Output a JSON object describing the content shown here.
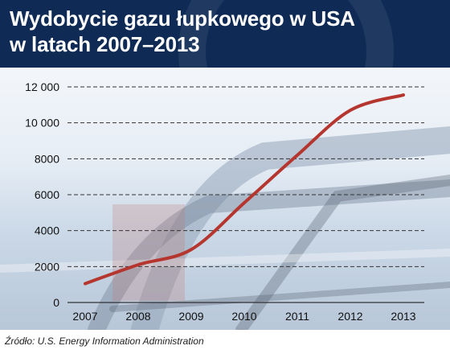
{
  "header": {
    "title_line1": "Wydobycie gazu łupkowego w USA",
    "title_line2": "w latach 2007–2013"
  },
  "source": "Źródło: U.S.  Energy Information Administration",
  "colors": {
    "header_bg": "#0f2a55",
    "line": "#b5362f",
    "gridline": "#333333"
  },
  "chart_data": {
    "type": "line",
    "title": "Wydobycie gazu łupkowego w USA w latach 2007–2013",
    "xlabel": "",
    "ylabel": "",
    "x": [
      "2007",
      "2008",
      "2009",
      "2010",
      "2011",
      "2012",
      "2013"
    ],
    "series": [
      {
        "values": [
          1050,
          2100,
          2950,
          5550,
          8200,
          10700,
          11550
        ]
      }
    ],
    "y_ticks": [
      "0",
      "2000",
      "4000",
      "6000",
      "8000",
      "10 000",
      "12 000"
    ],
    "ylim": [
      0,
      12000
    ],
    "grid": true,
    "grid_style": "dashed"
  }
}
